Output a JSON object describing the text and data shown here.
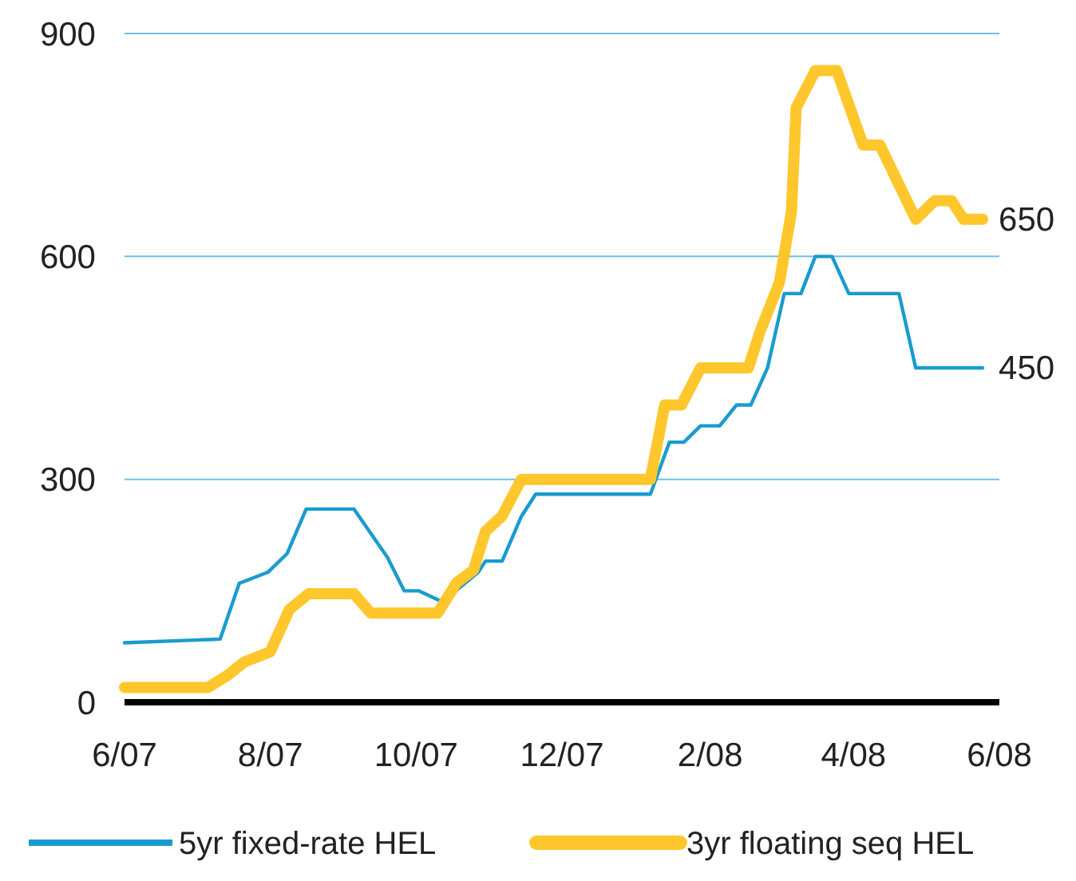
{
  "chart_data": {
    "type": "line",
    "xlim": [
      "2007-06-01",
      "2008-06-01"
    ],
    "xticks": [
      {
        "value": "2007-06-01",
        "label": "6/07"
      },
      {
        "value": "2007-08-01",
        "label": "8/07"
      },
      {
        "value": "2007-10-01",
        "label": "10/07"
      },
      {
        "value": "2007-12-01",
        "label": "12/07"
      },
      {
        "value": "2008-02-01",
        "label": "2/08"
      },
      {
        "value": "2008-04-01",
        "label": "4/08"
      },
      {
        "value": "2008-06-01",
        "label": "6/08"
      }
    ],
    "ylim": [
      0,
      900
    ],
    "yticks": [
      0,
      300,
      600,
      900
    ],
    "grid": "y",
    "legend": "bottom",
    "series": [
      {
        "name": "5yr fixed-rate HEL",
        "color": "#1a9bd0",
        "x": [
          "2007-06-01",
          "2007-07-11",
          "2007-07-19",
          "2007-07-31",
          "2007-08-08",
          "2007-08-16",
          "2007-09-05",
          "2007-09-19",
          "2007-09-26",
          "2007-10-02",
          "2007-10-12",
          "2007-10-27",
          "2007-10-30",
          "2007-11-06",
          "2007-11-14",
          "2007-11-20",
          "2008-01-07",
          "2008-01-15",
          "2008-01-21",
          "2008-01-28",
          "2008-02-05",
          "2008-02-12",
          "2008-02-18",
          "2008-02-25",
          "2008-03-03",
          "2008-03-10",
          "2008-03-16",
          "2008-03-23",
          "2008-03-30",
          "2008-04-20",
          "2008-04-27",
          "2008-05-25"
        ],
        "values": [
          80,
          85,
          160,
          175,
          200,
          260,
          260,
          195,
          150,
          150,
          135,
          175,
          190,
          190,
          250,
          280,
          280,
          350,
          350,
          372,
          372,
          400,
          400,
          450,
          550,
          550,
          600,
          600,
          550,
          550,
          450,
          450
        ],
        "value_labels": [
          null,
          null,
          null,
          null,
          null,
          null,
          null,
          null,
          null,
          null,
          null,
          null,
          null,
          null,
          null,
          null,
          null,
          null,
          null,
          null,
          null,
          null,
          null,
          null,
          null,
          null,
          null,
          null,
          null,
          null,
          null,
          "450"
        ]
      },
      {
        "name": "3yr floating seq HEL",
        "color": "#ffc72c",
        "x": [
          "2007-06-01",
          "2007-07-06",
          "2007-07-14",
          "2007-07-21",
          "2007-08-01",
          "2007-08-09",
          "2007-08-17",
          "2007-09-05",
          "2007-09-12",
          "2007-10-10",
          "2007-10-18",
          "2007-10-25",
          "2007-10-30",
          "2007-11-06",
          "2007-11-14",
          "2008-01-07",
          "2008-01-13",
          "2008-01-20",
          "2008-01-28",
          "2008-02-17",
          "2008-02-22",
          "2008-03-01",
          "2008-03-06",
          "2008-03-08",
          "2008-03-16",
          "2008-03-25",
          "2008-04-05",
          "2008-04-12",
          "2008-04-27",
          "2008-05-05",
          "2008-05-12",
          "2008-05-17",
          "2008-05-25"
        ],
        "values": [
          20,
          20,
          36,
          54,
          68,
          125,
          146,
          146,
          120,
          120,
          161,
          178,
          230,
          251,
          300,
          300,
          400,
          400,
          450,
          450,
          500,
          565,
          660,
          800,
          850,
          850,
          750,
          750,
          650,
          675,
          675,
          650,
          650
        ],
        "value_labels": [
          null,
          null,
          null,
          null,
          null,
          null,
          null,
          null,
          null,
          null,
          null,
          null,
          null,
          null,
          null,
          null,
          null,
          null,
          null,
          null,
          null,
          null,
          null,
          null,
          null,
          null,
          null,
          null,
          null,
          null,
          null,
          null,
          "650"
        ]
      }
    ]
  }
}
